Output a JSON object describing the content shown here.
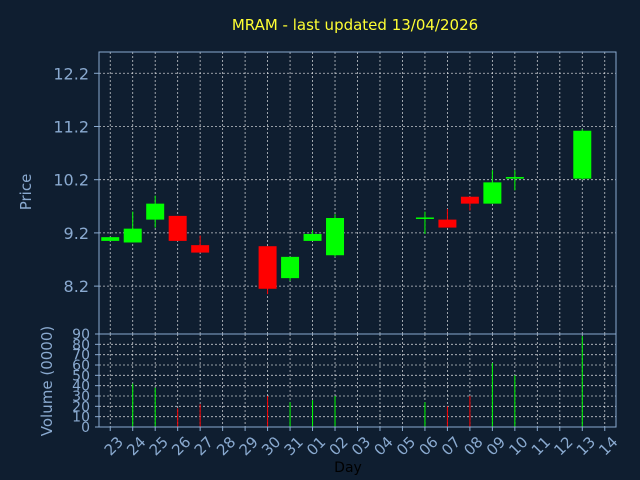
{
  "chart_data": {
    "type": "candlestick",
    "title": "MRAM - last updated 13/04/2026",
    "xlabel": "Day",
    "price_panel": {
      "ylabel": "Price",
      "ylim": [
        7.3,
        12.6
      ],
      "yticks": [
        "8.2",
        "9.2",
        "10.2",
        "11.2",
        "12.2"
      ],
      "grid": true
    },
    "volume_panel": {
      "ylabel": "Volume (0000)",
      "ylim": [
        0,
        90
      ],
      "yticks": [
        "0",
        "10",
        "20",
        "30",
        "40",
        "50",
        "60",
        "70",
        "80",
        "90"
      ],
      "grid": true
    },
    "x_ticks": [
      "23",
      "24",
      "25",
      "26",
      "27",
      "28",
      "29",
      "30",
      "31",
      "01",
      "02",
      "03",
      "04",
      "05",
      "06",
      "07",
      "08",
      "09",
      "10",
      "11",
      "12",
      "13",
      "14"
    ],
    "candles": [
      {
        "day": "23",
        "open": 9.05,
        "close": 9.12,
        "high": 9.12,
        "low": 9.05,
        "volume": 0
      },
      {
        "day": "24",
        "open": 9.02,
        "close": 9.28,
        "high": 9.6,
        "low": 9.02,
        "volume": 42
      },
      {
        "day": "25",
        "open": 9.45,
        "close": 9.75,
        "high": 9.9,
        "low": 9.3,
        "volume": 38
      },
      {
        "day": "26",
        "open": 9.52,
        "close": 9.05,
        "high": 9.52,
        "low": 9.05,
        "volume": 18
      },
      {
        "day": "27",
        "open": 8.97,
        "close": 8.83,
        "high": 9.15,
        "low": 8.83,
        "volume": 22
      },
      {
        "day": "30",
        "open": 8.95,
        "close": 8.15,
        "high": 8.95,
        "low": 8.05,
        "volume": 30
      },
      {
        "day": "31",
        "open": 8.35,
        "close": 8.75,
        "high": 8.75,
        "low": 8.3,
        "volume": 24
      },
      {
        "day": "01",
        "open": 9.05,
        "close": 9.18,
        "high": 9.25,
        "low": 9.05,
        "volume": 26
      },
      {
        "day": "02",
        "open": 8.78,
        "close": 9.48,
        "high": 9.55,
        "low": 8.75,
        "volume": 30
      },
      {
        "day": "06",
        "open": 9.47,
        "close": 9.49,
        "high": 9.6,
        "low": 9.18,
        "volume": 24
      },
      {
        "day": "07",
        "open": 9.45,
        "close": 9.3,
        "high": 9.65,
        "low": 9.3,
        "volume": 20
      },
      {
        "day": "08",
        "open": 9.88,
        "close": 9.75,
        "high": 9.88,
        "low": 9.62,
        "volume": 30
      },
      {
        "day": "09",
        "open": 9.75,
        "close": 10.15,
        "high": 10.38,
        "low": 9.75,
        "volume": 62
      },
      {
        "day": "10",
        "open": 10.22,
        "close": 10.25,
        "high": 10.38,
        "low": 10.0,
        "volume": 50
      },
      {
        "day": "13",
        "open": 10.22,
        "close": 11.12,
        "high": 11.15,
        "low": 10.2,
        "volume": 88
      }
    ],
    "colors": {
      "up": "#00ff00",
      "down": "#ff0000",
      "title": "#ffff33",
      "axis_text": "#8aaad0",
      "frame": "#8aaad0",
      "grid": "#ffffff",
      "background": "#0f1e30"
    }
  }
}
